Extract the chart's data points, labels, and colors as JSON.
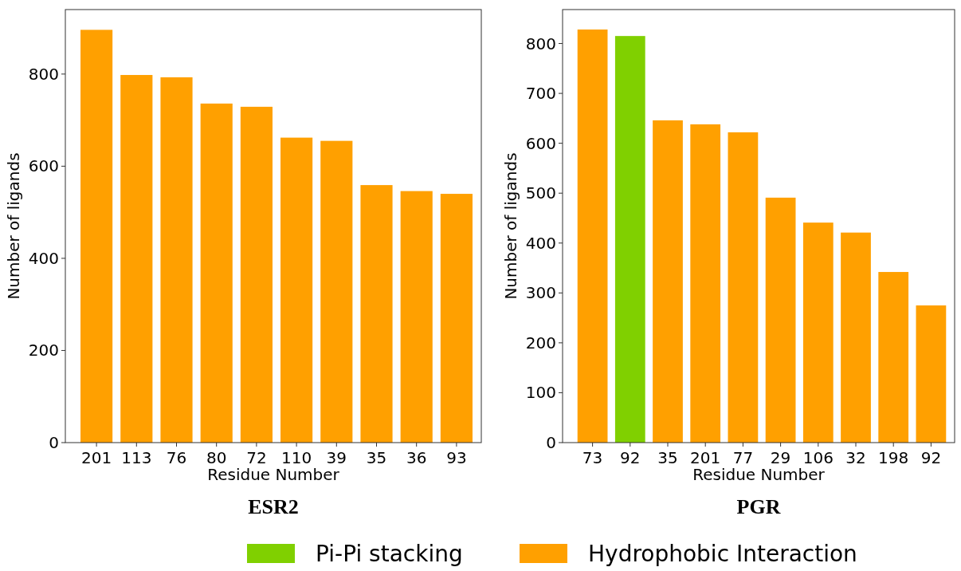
{
  "chart_data": [
    {
      "type": "bar",
      "title": "ESR2",
      "xlabel": "Residue Number",
      "ylabel": "Number of ligands",
      "categories": [
        "201",
        "113",
        "76",
        "80",
        "72",
        "110",
        "39",
        "35",
        "36",
        "93"
      ],
      "series": [
        {
          "color": "#ffa000",
          "values": [
            896,
            798,
            793,
            736,
            729,
            662,
            655,
            559,
            546,
            540
          ]
        }
      ],
      "ylim": [
        0,
        940
      ],
      "yticks": [
        0,
        200,
        400,
        600,
        800
      ],
      "legend": false
    },
    {
      "type": "bar",
      "title": "PGR",
      "xlabel": "Residue Number",
      "ylabel": "Number of ligands",
      "categories": [
        "73",
        "92",
        "35",
        "201",
        "77",
        "29",
        "106",
        "32",
        "198",
        "92"
      ],
      "series": [
        {
          "name": "Pi-Pi stacking",
          "color": "#80d000",
          "values": [
            null,
            815,
            null,
            null,
            null,
            null,
            null,
            null,
            null,
            null
          ]
        },
        {
          "name": "Hydrophobic Interaction",
          "color": "#ffa000",
          "values": [
            828,
            null,
            646,
            638,
            622,
            491,
            441,
            421,
            342,
            275
          ]
        }
      ],
      "ylim": [
        0,
        868
      ],
      "yticks": [
        0,
        100,
        200,
        300,
        400,
        500,
        600,
        700,
        800
      ],
      "legend": "bottom"
    }
  ]
}
